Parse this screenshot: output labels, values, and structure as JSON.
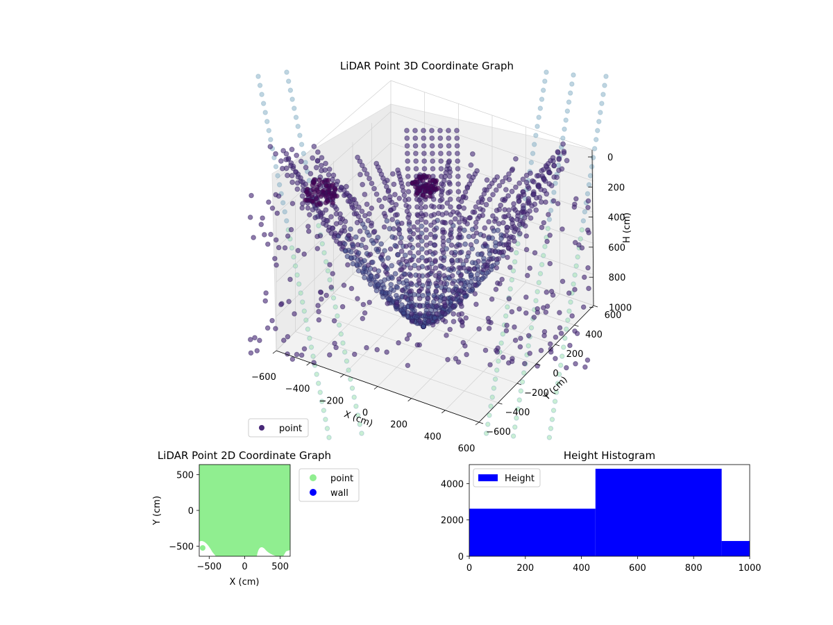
{
  "chart_data": [
    {
      "type": "scatter",
      "projection": "3d",
      "title": "LiDAR Point 3D Coordinate Graph",
      "xlabel": "X (cm)",
      "ylabel": "Y (cm)",
      "zlabel": "H (cm)",
      "xticks": [
        "−600",
        "−400",
        "−200",
        "0",
        "200",
        "400",
        "600"
      ],
      "yticks": [
        "−600",
        "−400",
        "−200",
        "0",
        "200",
        "400",
        "600"
      ],
      "zticks": [
        "0",
        "200",
        "400",
        "600",
        "800",
        "1000"
      ],
      "xlim": [
        -600,
        600
      ],
      "ylim": [
        -600,
        600
      ],
      "zlim": [
        1000,
        0
      ],
      "z_inverted": true,
      "grid": true,
      "legend": {
        "placement": "lower-left",
        "entries": [
          "point"
        ]
      },
      "series": [
        {
          "name": "point",
          "color": "#482878",
          "colormap": "viridis"
        }
      ]
    },
    {
      "type": "scatter",
      "title": "LiDAR Point 2D Coordinate Graph",
      "xlabel": "X (cm)",
      "ylabel": "Y (cm)",
      "xticks": [
        "−500",
        "0",
        "500"
      ],
      "yticks": [
        "500",
        "0",
        "−500"
      ],
      "xlim": [
        -640,
        640
      ],
      "ylim": [
        -640,
        640
      ],
      "legend": {
        "placement": "outside-right",
        "entries": [
          "point",
          "wall"
        ]
      },
      "series": [
        {
          "name": "point",
          "color": "#90ee90"
        },
        {
          "name": "wall",
          "color": "#0000ff"
        }
      ]
    },
    {
      "type": "bar",
      "histogram": true,
      "title": "Height Histogram",
      "bins": [
        [
          0,
          450
        ],
        [
          450,
          900
        ],
        [
          900,
          1000
        ]
      ],
      "values": [
        2620,
        4820,
        840
      ],
      "xlim": [
        0,
        1000
      ],
      "ylim": [
        0,
        5050
      ],
      "xticks": [
        "0",
        "200",
        "400",
        "600",
        "800",
        "1000"
      ],
      "yticks": [
        "0",
        "2000",
        "4000"
      ],
      "color": "#0000ff",
      "legend": {
        "placement": "top-left",
        "entries": [
          "Height"
        ]
      },
      "series": [
        {
          "name": "Height",
          "color": "#0000ff"
        }
      ]
    }
  ]
}
